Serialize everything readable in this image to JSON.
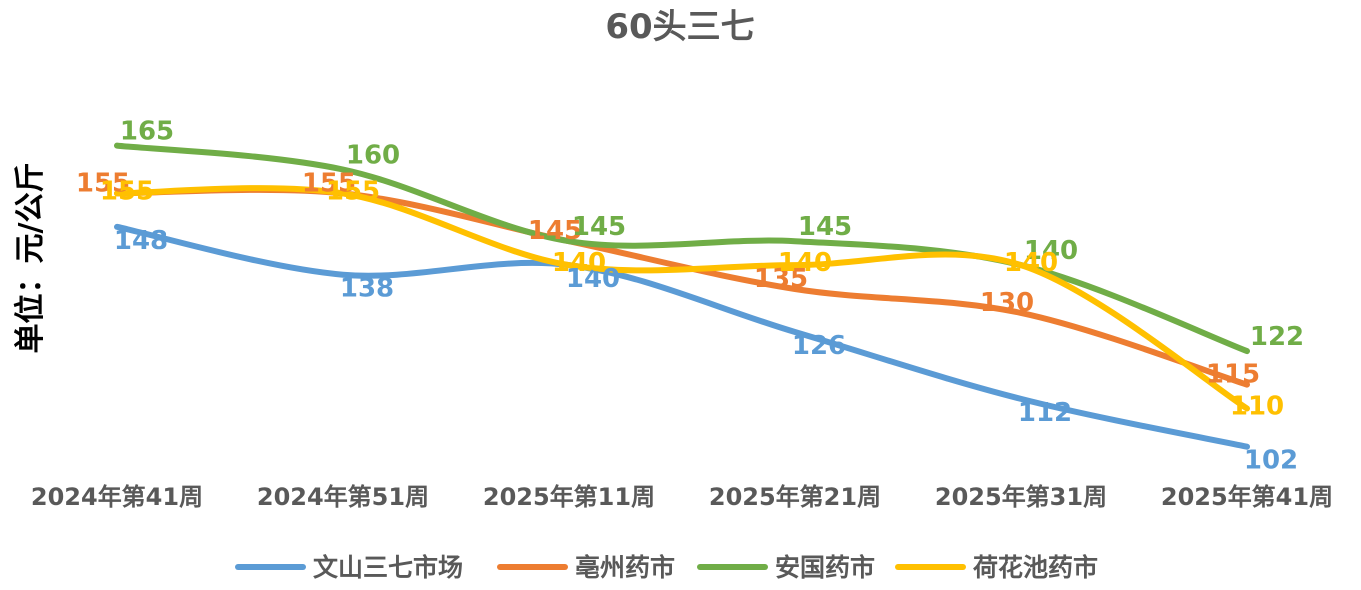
{
  "chart_data": {
    "type": "line",
    "title": "60头三七",
    "ylabel": "单位：元/公斤",
    "xlabel": "",
    "categories": [
      "2024年第41周",
      "2024年第51周",
      "2025年第11周",
      "2025年第21周",
      "2025年第31周",
      "2025年第41周"
    ],
    "ylim": [
      85,
      185
    ],
    "grid": false,
    "legend_position": "bottom",
    "smooth": true,
    "series": [
      {
        "name": "文山三七市场",
        "color": "#5B9BD5",
        "values": [
          148,
          138,
          140,
          126,
          112,
          102
        ]
      },
      {
        "name": "亳州药市",
        "color": "#ED7D31",
        "values": [
          155,
          155,
          145,
          135,
          130,
          115
        ]
      },
      {
        "name": "安国药市",
        "color": "#70AD47",
        "values": [
          165,
          160,
          145,
          145,
          140,
          122
        ]
      },
      {
        "name": "荷花池药市",
        "color": "#FFC000",
        "values": [
          155,
          155,
          140,
          140,
          140,
          110
        ]
      }
    ]
  }
}
